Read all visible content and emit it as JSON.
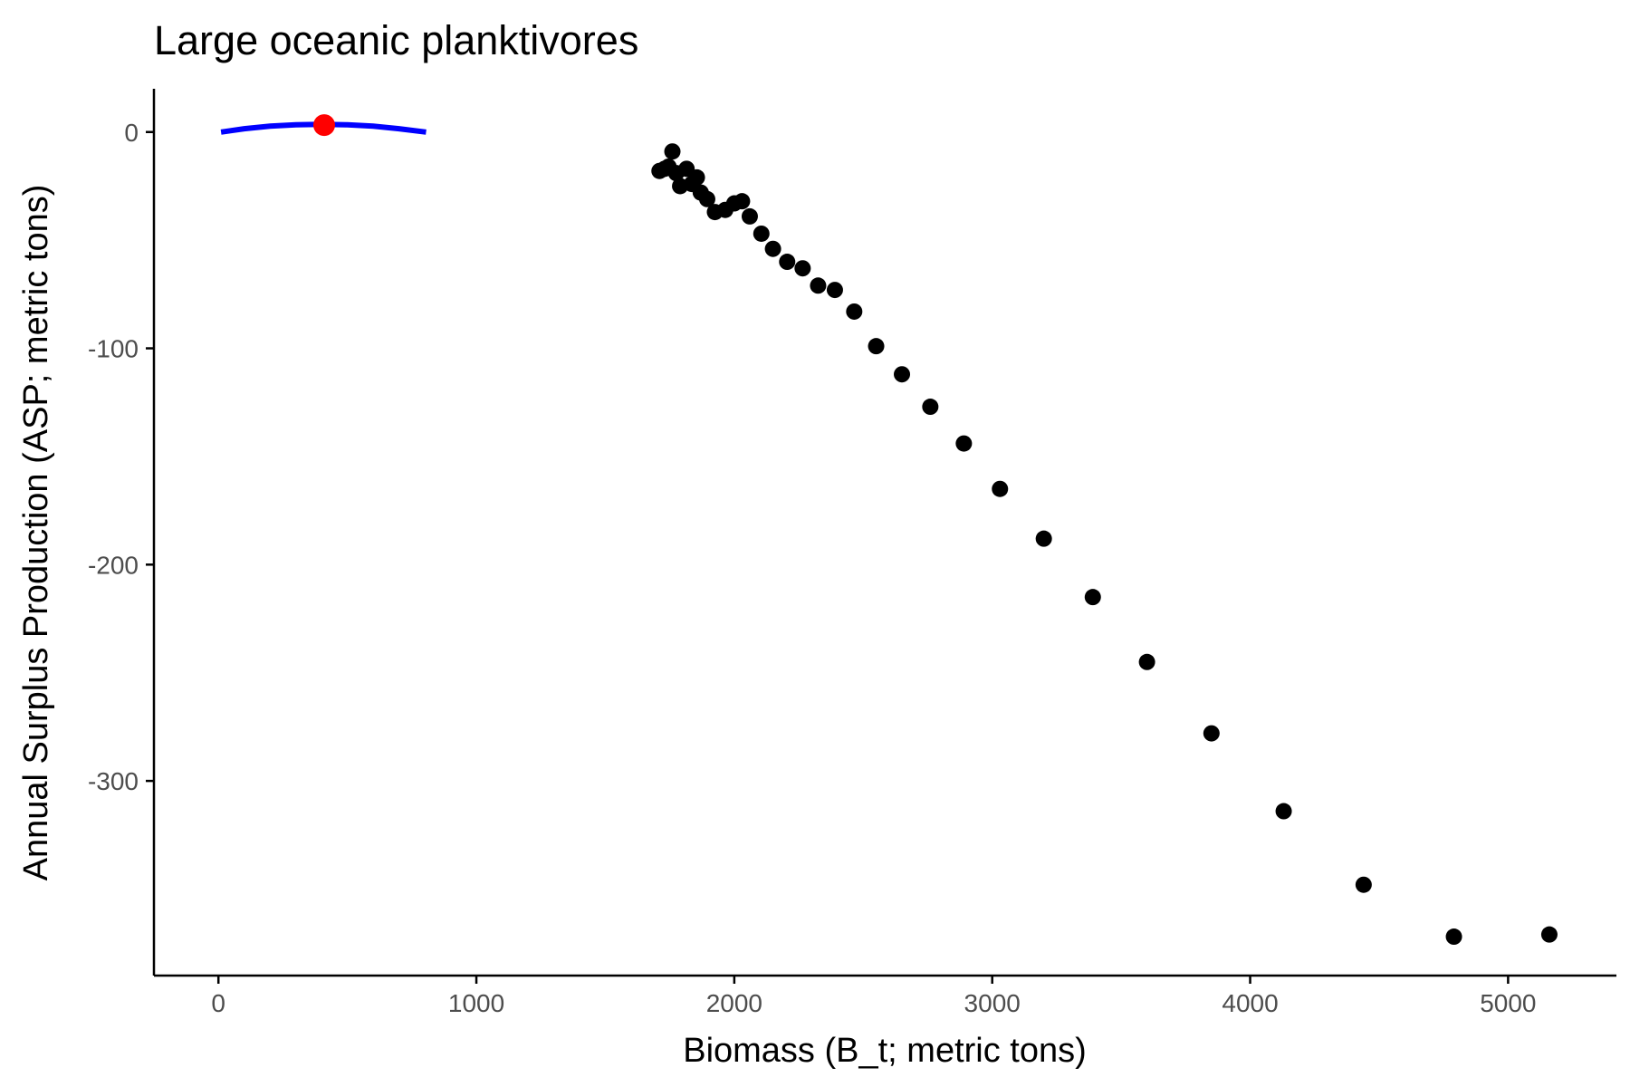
{
  "chart_data": {
    "type": "scatter",
    "title": "Large oceanic planktivores",
    "xlabel": "Biomass (B_t; metric tons)",
    "ylabel": "Annual Surplus Production (ASP; metric tons)",
    "xlim": [
      -250,
      5420
    ],
    "ylim": [
      -390,
      20
    ],
    "x_ticks": [
      0,
      1000,
      2000,
      3000,
      4000,
      5000
    ],
    "x_tick_labels": [
      "0",
      "1000",
      "2000",
      "3000",
      "4000",
      "5000"
    ],
    "y_ticks": [
      0,
      -100,
      -200,
      -300
    ],
    "y_tick_labels": [
      "0",
      "-100",
      "-200",
      "-300"
    ],
    "grid": false,
    "legend": "none",
    "colors": {
      "points": "#000000",
      "fit_curve": "#0000ff",
      "msy_point": "#ff0000"
    },
    "series": [
      {
        "kind": "points",
        "x": [
          5160,
          4790,
          4440,
          4130,
          3850,
          3600,
          3390,
          3200,
          3030,
          2890,
          2760,
          2650,
          2550,
          2465,
          2390,
          2325,
          2265,
          2205,
          2150,
          2105,
          2060,
          2030,
          2000,
          1965,
          1925,
          1895,
          1870,
          1855,
          1835,
          1815,
          1790,
          1775,
          1760,
          1745,
          1730,
          1710
        ],
        "y": [
          -371,
          -372,
          -348,
          -314,
          -278,
          -245,
          -215,
          -188,
          -165,
          -144,
          -127,
          -112,
          -99,
          -83,
          -73,
          -71,
          -63,
          -60,
          -54,
          -47,
          -39,
          -32,
          -33,
          -36,
          -37,
          -31,
          -28,
          -21,
          -24,
          -17,
          -25,
          -19,
          -9,
          -16,
          -17,
          -18
        ]
      },
      {
        "kind": "curve",
        "x": [
          10,
          100,
          200,
          300,
          400,
          500,
          600,
          700,
          805
        ],
        "y": [
          0.0,
          1.55,
          2.69,
          3.35,
          3.55,
          3.35,
          2.69,
          1.55,
          0.0
        ]
      },
      {
        "kind": "highlight",
        "x": [
          410
        ],
        "y": [
          3.2
        ]
      }
    ]
  }
}
